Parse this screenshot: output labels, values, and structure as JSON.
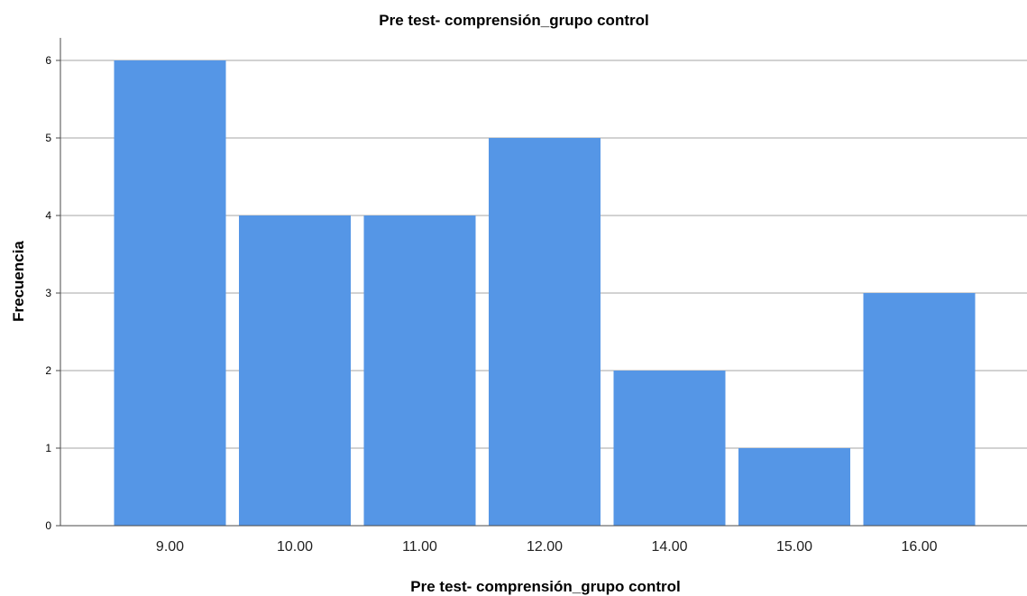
{
  "chart_data": {
    "type": "bar",
    "title": "Pre test- comprensión_grupo control",
    "xlabel": "Pre test- comprensión_grupo control",
    "ylabel": "Frecuencia",
    "categories": [
      "9.00",
      "10.00",
      "11.00",
      "12.00",
      "14.00",
      "15.00",
      "16.00"
    ],
    "values": [
      6,
      4,
      4,
      5,
      2,
      1,
      3
    ],
    "ylim": [
      0,
      6
    ],
    "yticks": [
      "0",
      "1",
      "2",
      "3",
      "4",
      "5",
      "6"
    ],
    "grid": true,
    "legend": "none",
    "colors": {
      "bar": "#5596e6",
      "grid": "#c4c4c4",
      "axis": "#4a4a4a"
    }
  }
}
